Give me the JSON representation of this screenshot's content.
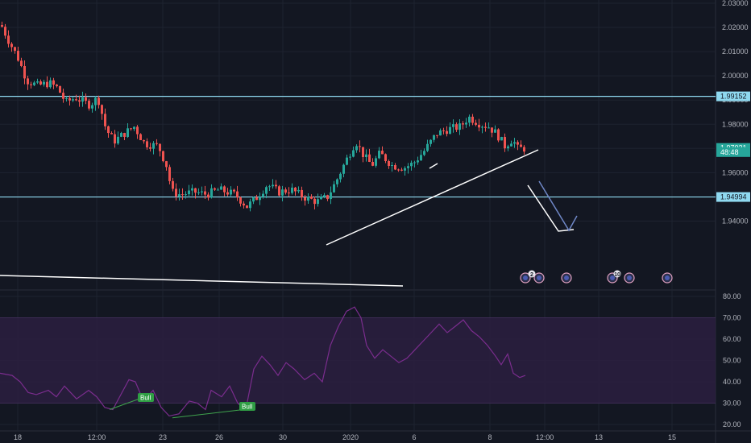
{
  "price_axis": {
    "ticks": [
      "2.03000",
      "2.02000",
      "2.01000",
      "2.00000",
      "1.99000",
      "1.98000",
      "1.97000",
      "1.96000",
      "1.95000",
      "1.94000"
    ],
    "badges": [
      {
        "label": "1.99152",
        "value": 1.99152
      },
      {
        "label": "1.97021",
        "value": 1.97021
      },
      {
        "label": "48:48",
        "value": 1.9685
      },
      {
        "label": "1.94994",
        "value": 1.94994
      }
    ]
  },
  "rsi_axis": {
    "ticks": [
      "80.00",
      "70.00",
      "60.00",
      "50.00",
      "40.00",
      "30.00",
      "20.00"
    ],
    "band": [
      30,
      70
    ],
    "range": [
      17,
      83
    ]
  },
  "time_axis": {
    "ticks": [
      "18",
      "12:00",
      "23",
      "26",
      "30",
      "2020",
      "6",
      "8",
      "12:00",
      "13",
      "15"
    ]
  },
  "horizontal_levels": [
    1.99152,
    1.94994
  ],
  "signals": [
    {
      "label": "Bull",
      "rsi": 27
    },
    {
      "label": "Bull",
      "rsi": 23.5
    }
  ],
  "event_counts": [
    "2",
    "10"
  ],
  "colors": {
    "background": "#131722",
    "grid": "#1e2330",
    "up": "#26a69a",
    "down": "#ef5350",
    "level": "#8fd9f0",
    "trendline": "#ffffff",
    "arrow_projection": "#6f87c6",
    "rsi_line": "#7b2d8e",
    "rsi_band": "#2b1f3f",
    "bull_badge": "#2f9e44",
    "axis_text": "#b2b5be"
  },
  "icons": [
    "flag-icon",
    "event-flag-icon"
  ]
}
